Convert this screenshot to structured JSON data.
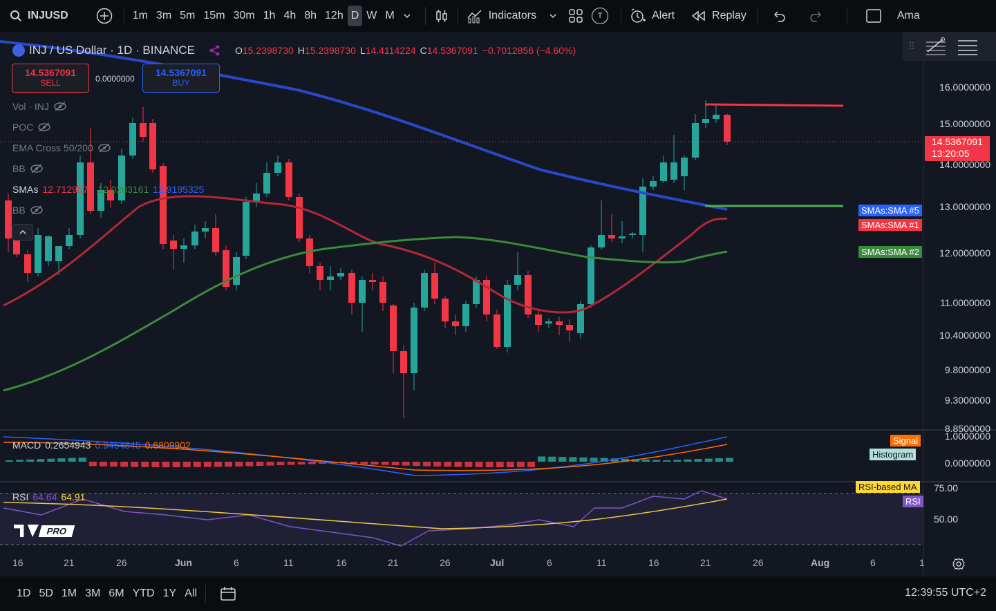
{
  "toolbar": {
    "symbol": "INJUSD",
    "timeframes": [
      "1m",
      "3m",
      "5m",
      "15m",
      "30m",
      "1h",
      "4h",
      "8h",
      "12h",
      "D",
      "W",
      "M"
    ],
    "active_timeframe": "D",
    "indicators_label": "Indicators",
    "alert_label": "Alert",
    "replay_label": "Replay",
    "trailing_text": "Ama",
    "t_badge": "T"
  },
  "legend": {
    "title": "INJ / US Dollar · 1D · BINANCE",
    "o_label": "O",
    "o_value": "15.2398730",
    "h_label": "H",
    "h_value": "15.2398730",
    "l_label": "L",
    "l_value": "14.4114224",
    "c_label": "C",
    "c_value": "14.5367091",
    "change": "−0.7012856 (−4.60%)"
  },
  "trade": {
    "sell_price": "14.5367091",
    "sell_label": "SELL",
    "spread": "0.0000000",
    "buy_price": "14.5367091",
    "buy_label": "BUY"
  },
  "indicators": {
    "vol": "Vol · INJ",
    "poc": "POC",
    "ema": "EMA Cross 50/200",
    "bb1": "BB",
    "smas_label": "SMAs",
    "sma1": "12.7129578",
    "sma2": "12.0203161",
    "sma3": "12.9195325",
    "bb2": "BB"
  },
  "price_axis": [
    "16.0000000",
    "15.0000000",
    "14.0000000",
    "13.0000000",
    "12.0000000",
    "11.0000000",
    "10.4000000",
    "9.8000000",
    "9.3000000",
    "8.8500000"
  ],
  "current_price": {
    "price": "14.5367091",
    "countdown": "13:20:05"
  },
  "sma_tags": {
    "sma5": "SMAs:SMA #5",
    "sma1": "SMAs:SMA #1",
    "sma2": "SMAs:SMA #2"
  },
  "macd": {
    "label": "MACD",
    "v1": "0.2654943",
    "v2": "0.9464845",
    "v3": "0.6809902",
    "axis": [
      "1.0000000",
      "0.0000000"
    ],
    "signal_tag": "Signal",
    "histogram_tag": "Histogram"
  },
  "rsi": {
    "label": "RSI",
    "v1": "64.64",
    "v2": "64.91",
    "axis": [
      "75.00",
      "50.00"
    ],
    "ma_tag": "RSI-based MA",
    "rsi_tag": "RSI"
  },
  "logo_text": "PRO",
  "date_axis": [
    "16",
    "21",
    "26",
    "Jun",
    "6",
    "11",
    "16",
    "21",
    "26",
    "Jul",
    "6",
    "11",
    "16",
    "21",
    "26",
    "Aug",
    "6",
    "1"
  ],
  "bottom": {
    "ranges": [
      "1D",
      "5D",
      "1M",
      "3M",
      "6M",
      "YTD",
      "1Y",
      "All"
    ],
    "clock": "12:39:55 UTC+2"
  },
  "colors": {
    "up": "#26a69a",
    "down": "#f23645",
    "sma_blue": "#2a47c9",
    "sma_red": "#b2283a",
    "sma_green": "#3c8a3c",
    "background": "#131722"
  }
}
